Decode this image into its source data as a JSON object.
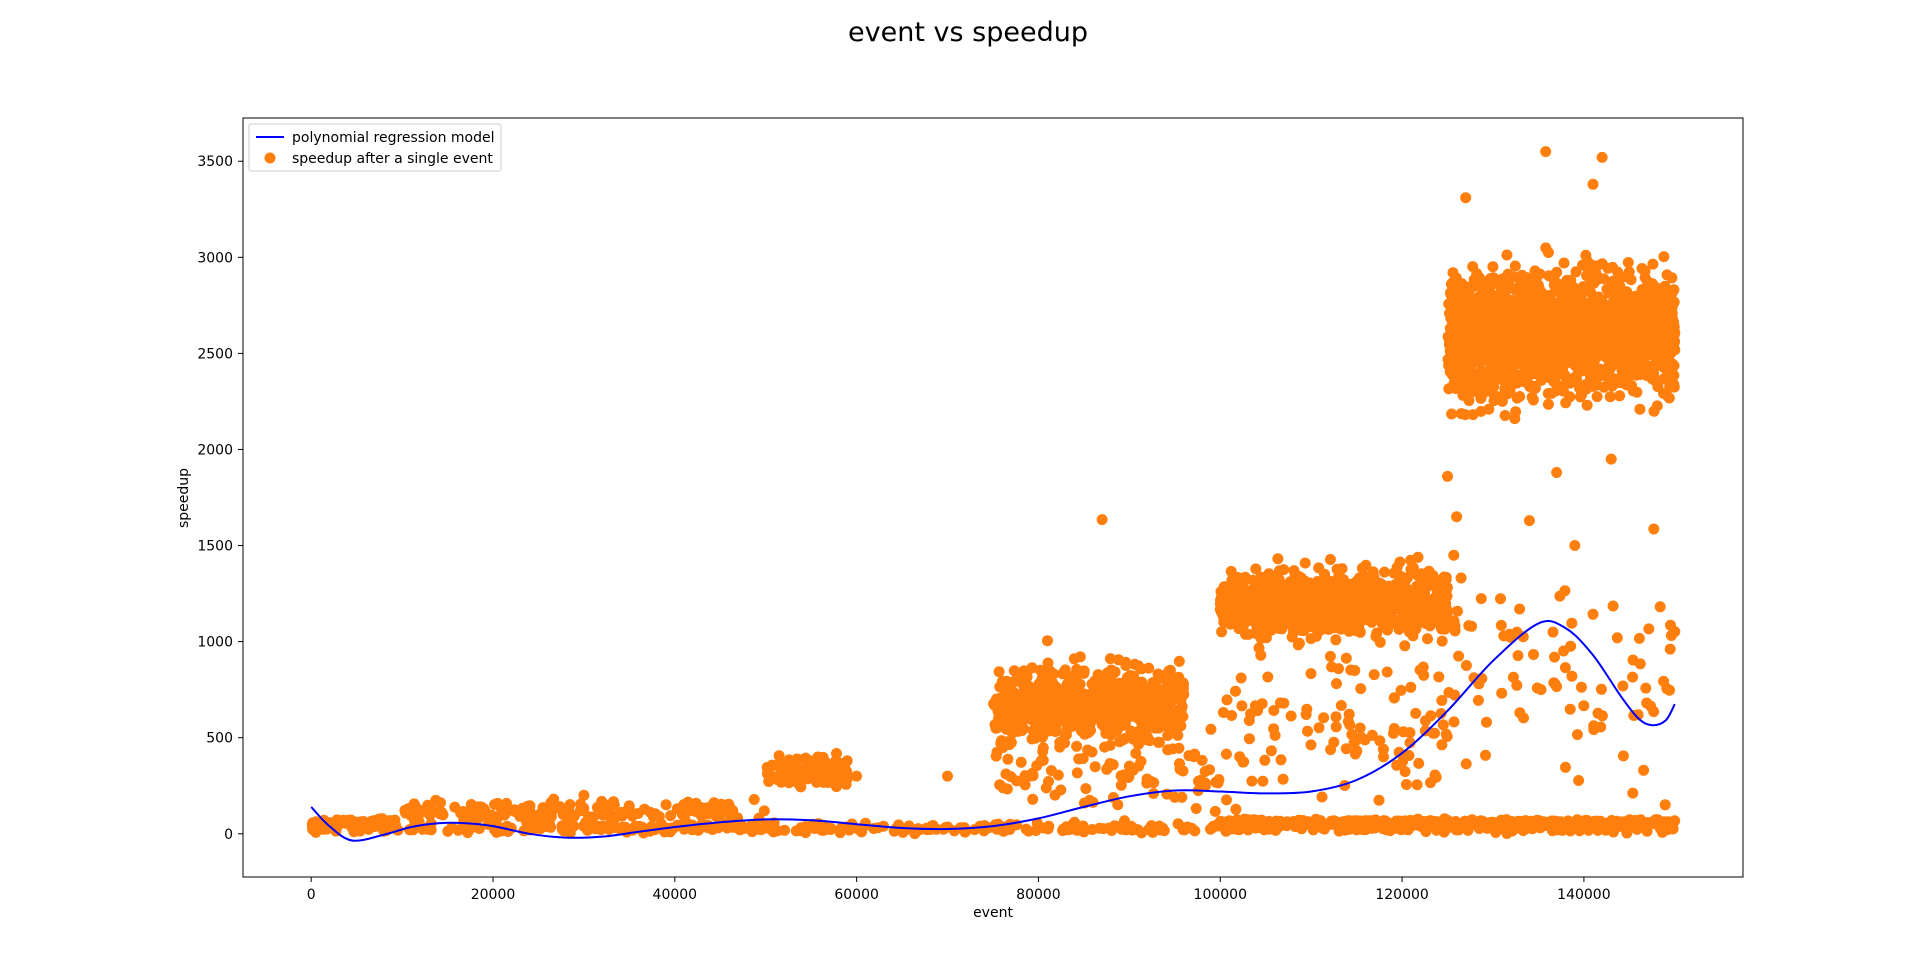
{
  "chart_data": {
    "type": "scatter",
    "title": "event vs speedup",
    "xlabel": "event",
    "ylabel": "speedup",
    "xlim": [
      -7500,
      157500
    ],
    "ylim": [
      -225,
      3725
    ],
    "x_ticks": [
      0,
      20000,
      40000,
      60000,
      80000,
      100000,
      120000,
      140000
    ],
    "y_ticks": [
      0,
      500,
      1000,
      1500,
      2000,
      2500,
      3000,
      3500
    ],
    "grid": false,
    "legend_position": "upper-left",
    "series": [
      {
        "name": "polynomial regression model",
        "kind": "line",
        "color": "#0000ff",
        "points": [
          [
            0,
            140
          ],
          [
            2000,
            40
          ],
          [
            4500,
            -35
          ],
          [
            8000,
            -5
          ],
          [
            11000,
            35
          ],
          [
            14000,
            55
          ],
          [
            17000,
            55
          ],
          [
            20000,
            40
          ],
          [
            24000,
            0
          ],
          [
            28000,
            -20
          ],
          [
            32000,
            -15
          ],
          [
            36000,
            10
          ],
          [
            40000,
            35
          ],
          [
            45000,
            60
          ],
          [
            50000,
            75
          ],
          [
            55000,
            70
          ],
          [
            60000,
            50
          ],
          [
            65000,
            30
          ],
          [
            70000,
            25
          ],
          [
            75000,
            40
          ],
          [
            80000,
            80
          ],
          [
            85000,
            140
          ],
          [
            90000,
            195
          ],
          [
            95000,
            225
          ],
          [
            100000,
            220
          ],
          [
            105000,
            210
          ],
          [
            110000,
            220
          ],
          [
            115000,
            280
          ],
          [
            120000,
            420
          ],
          [
            125000,
            640
          ],
          [
            130000,
            900
          ],
          [
            135000,
            1095
          ],
          [
            138000,
            1070
          ],
          [
            141000,
            930
          ],
          [
            144000,
            720
          ],
          [
            146000,
            600
          ],
          [
            147500,
            565
          ],
          [
            149000,
            590
          ],
          [
            150000,
            675
          ]
        ]
      },
      {
        "name": "speedup after a single event",
        "kind": "scatter",
        "color": "#ff7f0e",
        "segments": [
          {
            "x_range": [
              0,
              150000
            ],
            "y_center": 30,
            "y_spread": 25,
            "count": 500
          },
          {
            "x_range": [
              0,
              10000
            ],
            "y_center": 55,
            "y_spread": 25,
            "count": 80
          },
          {
            "x_range": [
              10000,
              50000
            ],
            "y_center": 120,
            "y_spread": 60,
            "count": 170
          },
          {
            "x_range": [
              50000,
              59000
            ],
            "y_center": 330,
            "y_spread": 80,
            "count": 120
          },
          {
            "x_range": [
              75000,
              96000
            ],
            "y_center": 680,
            "y_spread": 200,
            "count": 650
          },
          {
            "x_range": [
              75000,
              100000
            ],
            "y_center": 300,
            "y_spread": 220,
            "count": 90
          },
          {
            "x_range": [
              100000,
              125000
            ],
            "y_center": 1200,
            "y_spread": 180,
            "count": 900
          },
          {
            "x_range": [
              100000,
              125000
            ],
            "y_center": 550,
            "y_spread": 400,
            "count": 110
          },
          {
            "x_range": [
              100000,
              150000
            ],
            "y_center": 60,
            "y_spread": 15,
            "count": 350
          },
          {
            "x_range": [
              125000,
              150000
            ],
            "y_center": 2600,
            "y_spread": 330,
            "count": 1600
          },
          {
            "x_range": [
              125000,
              150000
            ],
            "y_center": 800,
            "y_spread": 600,
            "count": 90
          }
        ],
        "outliers": [
          [
            87000,
            1635
          ],
          [
            81000,
            1005
          ],
          [
            135800,
            3550
          ],
          [
            142000,
            3520
          ],
          [
            134000,
            1630
          ],
          [
            139000,
            1500
          ],
          [
            127000,
            3310
          ],
          [
            141000,
            3380
          ],
          [
            125000,
            1860
          ],
          [
            137000,
            1880
          ],
          [
            143000,
            1950
          ],
          [
            126000,
            1650
          ],
          [
            70000,
            300
          ],
          [
            60000,
            300
          ],
          [
            30000,
            200
          ]
        ]
      }
    ]
  }
}
